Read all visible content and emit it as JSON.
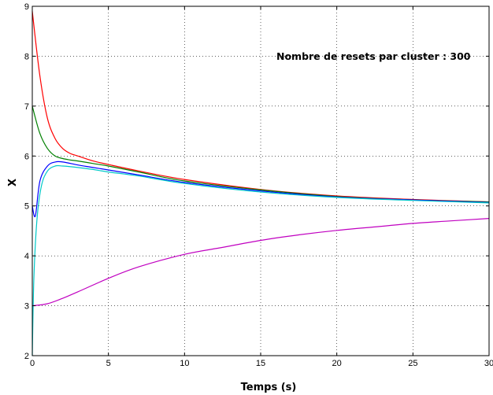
{
  "chart_data": {
    "type": "line",
    "title": "",
    "xlabel": "Temps (s)",
    "ylabel": "X",
    "annotation": "Nombre de resets par cluster : 300",
    "xlim": [
      0,
      30
    ],
    "ylim": [
      2,
      9
    ],
    "xticks": [
      "0",
      "5",
      "10",
      "15",
      "20",
      "25",
      "30"
    ],
    "yticks": [
      "2",
      "3",
      "4",
      "5",
      "6",
      "7",
      "8",
      "9"
    ],
    "grid": true,
    "legend": "none",
    "series": [
      {
        "color": "#ff0000",
        "x": [
          0,
          0.5,
          1,
          1.5,
          2,
          2.5,
          3,
          4,
          5,
          7,
          10,
          15,
          20,
          25,
          30
        ],
        "values": [
          8.9,
          7.6,
          6.75,
          6.35,
          6.15,
          6.05,
          6.0,
          5.9,
          5.83,
          5.7,
          5.53,
          5.33,
          5.2,
          5.13,
          5.08
        ]
      },
      {
        "color": "#008000",
        "x": [
          0,
          0.5,
          1,
          1.5,
          2,
          2.5,
          3,
          4,
          5,
          7,
          10,
          15,
          20,
          25,
          30
        ],
        "values": [
          7.0,
          6.45,
          6.15,
          6.0,
          5.95,
          5.92,
          5.9,
          5.85,
          5.8,
          5.68,
          5.5,
          5.32,
          5.19,
          5.12,
          5.08
        ]
      },
      {
        "color": "#0000ff",
        "x": [
          0,
          0.2,
          0.5,
          1,
          1.5,
          2,
          3,
          4,
          5,
          7,
          10,
          15,
          20,
          25,
          30
        ],
        "values": [
          5.0,
          4.8,
          5.5,
          5.8,
          5.88,
          5.88,
          5.82,
          5.77,
          5.72,
          5.62,
          5.47,
          5.3,
          5.18,
          5.12,
          5.07
        ]
      },
      {
        "color": "#00c8c8",
        "x": [
          0,
          0.1,
          0.3,
          0.6,
          1,
          1.5,
          2,
          3,
          4,
          5,
          7,
          10,
          15,
          20,
          25,
          30
        ],
        "values": [
          2.0,
          3.5,
          4.7,
          5.4,
          5.7,
          5.8,
          5.8,
          5.77,
          5.73,
          5.68,
          5.6,
          5.45,
          5.28,
          5.17,
          5.11,
          5.06
        ]
      },
      {
        "color": "#c000c0",
        "x": [
          0,
          1,
          2,
          3,
          5,
          7,
          10,
          12.5,
          15,
          17.5,
          20,
          22.5,
          25,
          27.5,
          30
        ],
        "values": [
          3.0,
          3.04,
          3.15,
          3.28,
          3.55,
          3.78,
          4.03,
          4.17,
          4.31,
          4.42,
          4.51,
          4.58,
          4.65,
          4.7,
          4.75
        ]
      }
    ]
  }
}
